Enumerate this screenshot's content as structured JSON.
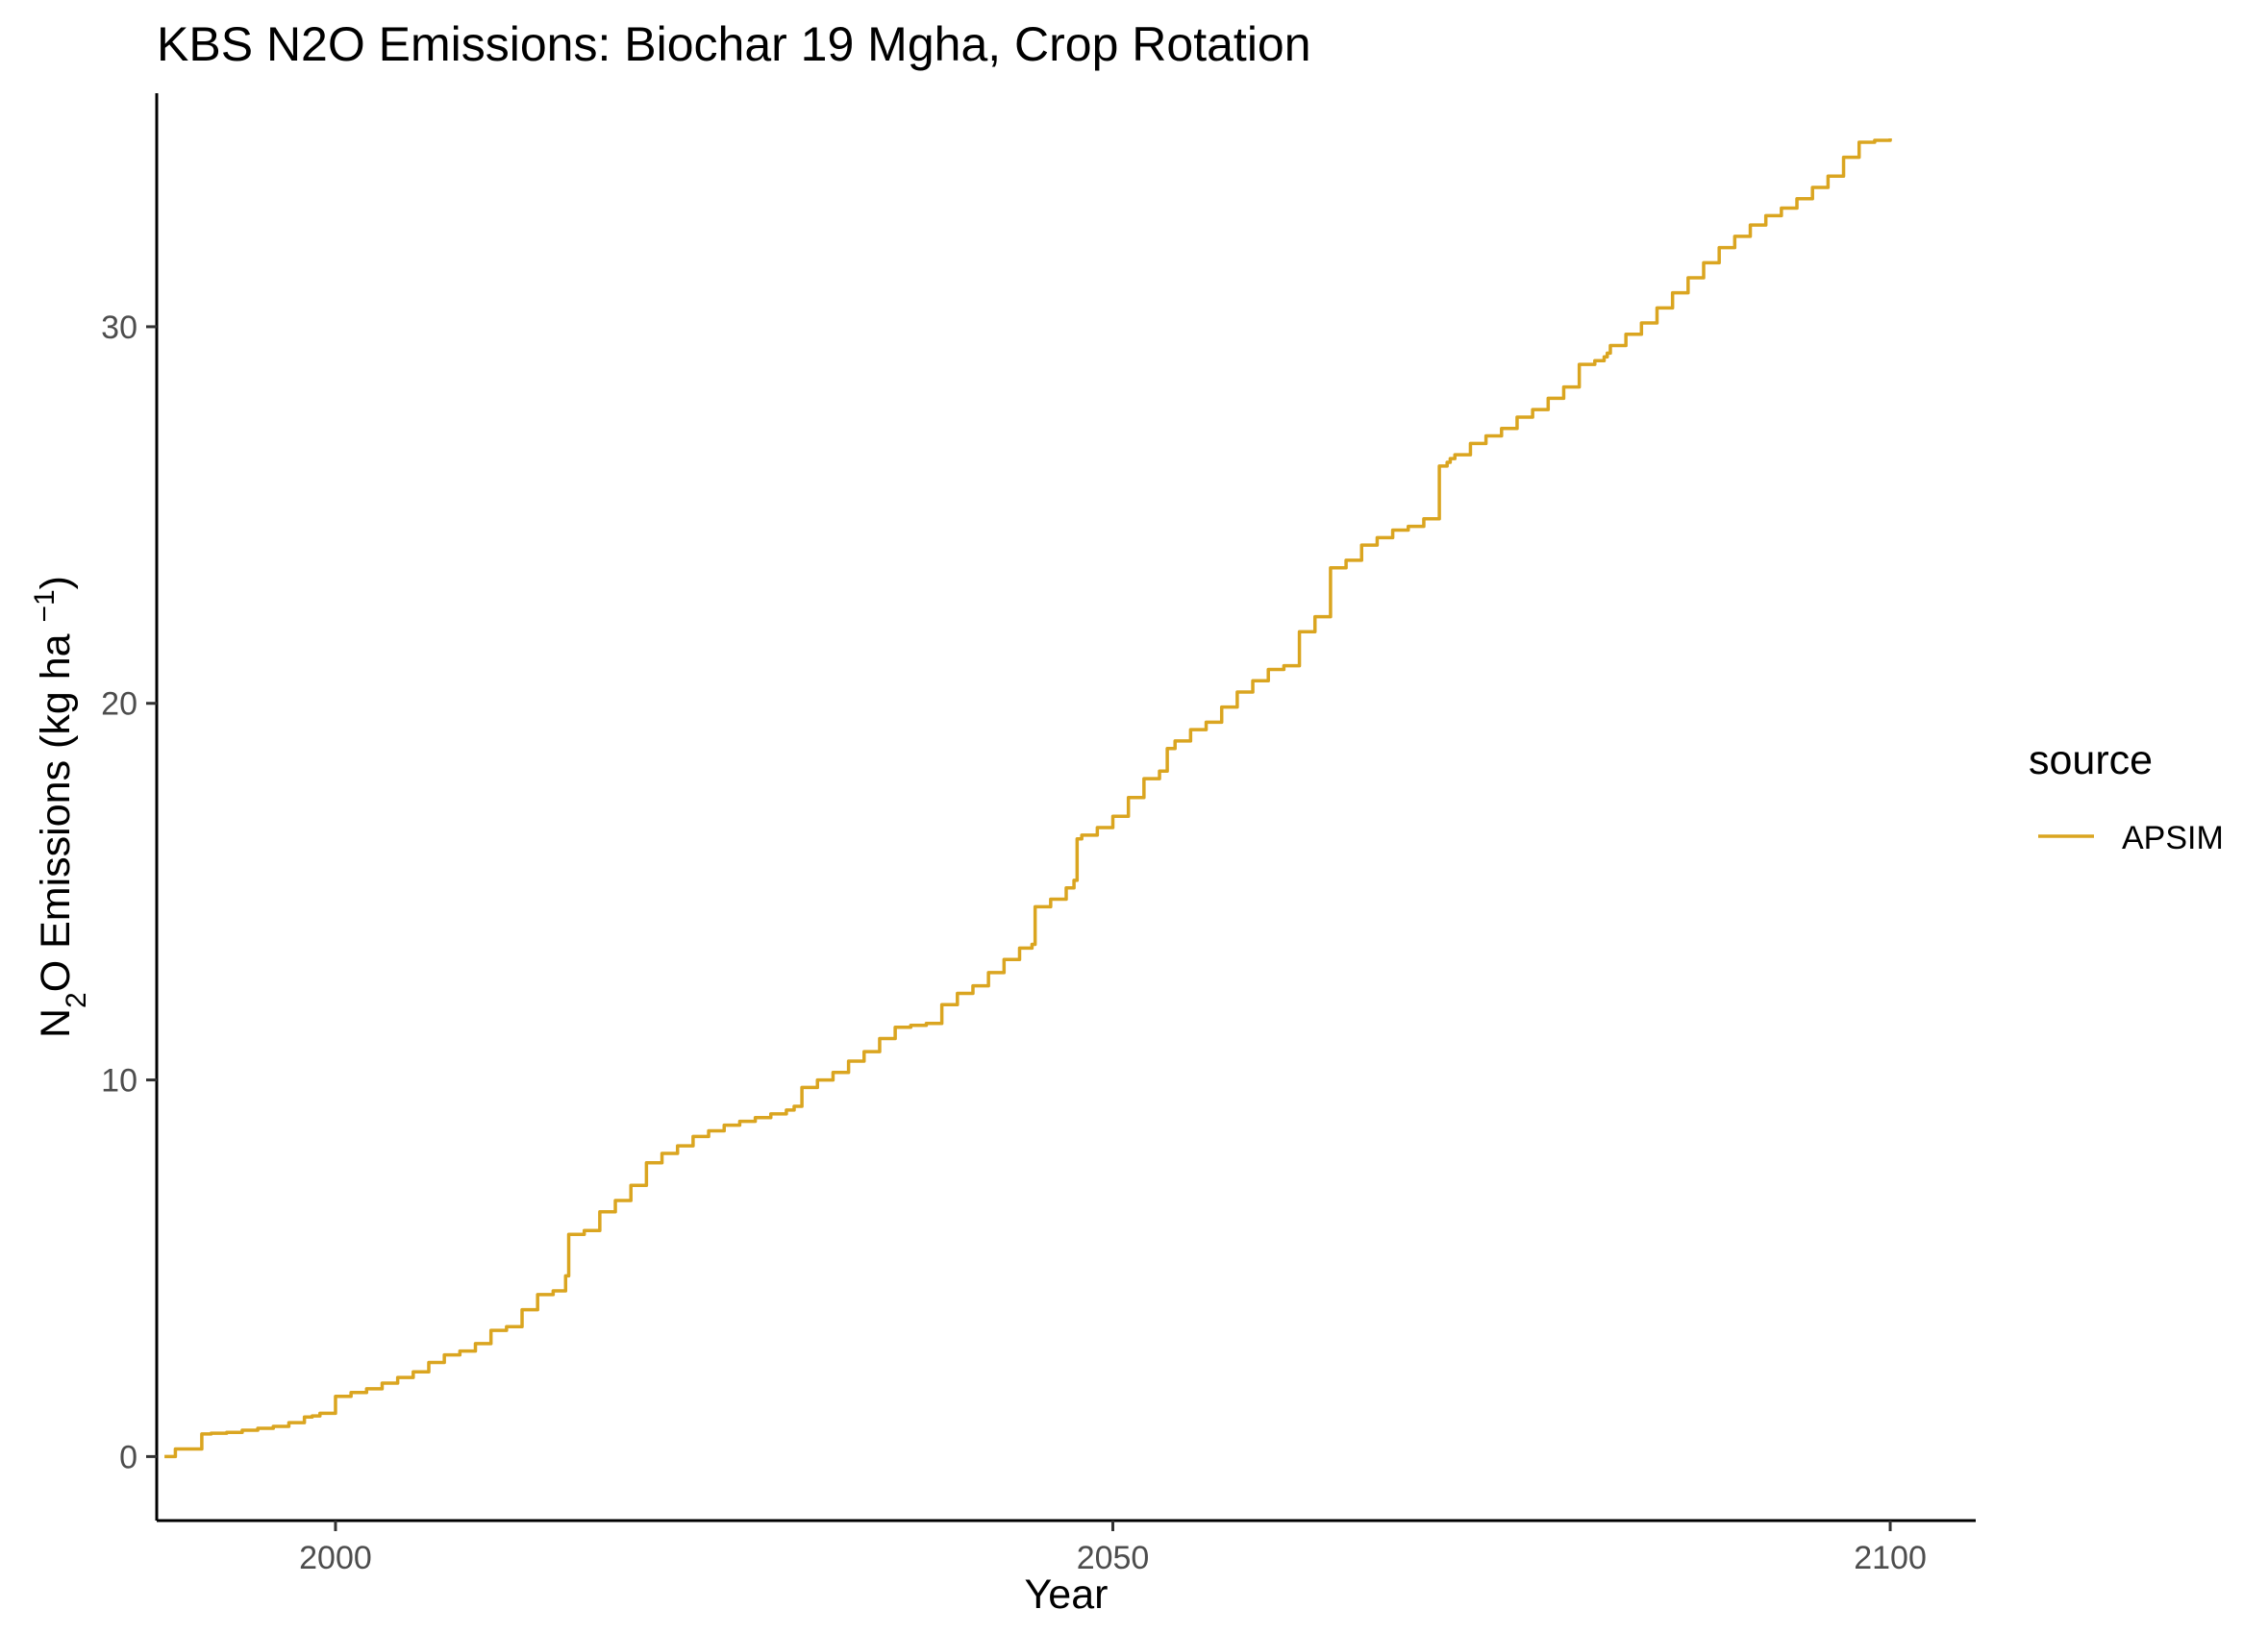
{
  "chart_data": {
    "type": "line",
    "title": "KBS N2O Emissions:  Biochar 19 Mgha, Crop Rotation",
    "xlabel": "Year",
    "ylabel": {
      "prefix": "N",
      "sub": "2",
      "mid": "O Emissions (kg ha ",
      "sup": "−1",
      "suffix": ")"
    },
    "xlim": [
      1988.5,
      2105.5
    ],
    "ylim": [
      -1.7,
      36.2
    ],
    "x_ticks": [
      2000,
      2050,
      2100
    ],
    "x_tick_labels": [
      "2000",
      "2050",
      "2100"
    ],
    "y_ticks": [
      0,
      10,
      20,
      30
    ],
    "y_tick_labels": [
      "0",
      "10",
      "20",
      "30"
    ],
    "grid": false,
    "legend": {
      "title": "source",
      "position": "right",
      "entries": [
        {
          "label": "APSIM",
          "color": "#DAA520"
        }
      ]
    },
    "series": [
      {
        "name": "APSIM",
        "color": "#DAA520",
        "x": [
          1989,
          1989.6,
          1989.7,
          1991.3,
          1991.4,
          1992,
          1993,
          1994,
          1995,
          1996,
          1997,
          1998,
          1998.5,
          1999,
          2000,
          2001,
          2002,
          2003,
          2004,
          2005,
          2006,
          2007,
          2008,
          2009,
          2010,
          2011,
          2012,
          2013,
          2014,
          2014.8,
          2015,
          2016,
          2017,
          2018,
          2019,
          2020,
          2021,
          2022,
          2023,
          2024,
          2025,
          2026,
          2027,
          2028,
          2029,
          2029.5,
          2030,
          2031,
          2032,
          2033,
          2034,
          2035,
          2036,
          2037,
          2038,
          2039,
          2040,
          2041,
          2042,
          2043,
          2044,
          2044.8,
          2045,
          2046,
          2047,
          2047.5,
          2047.7,
          2048,
          2049,
          2050,
          2051,
          2052,
          2053,
          2053.5,
          2054,
          2055,
          2056,
          2057,
          2058,
          2059,
          2060,
          2061,
          2062,
          2063,
          2064,
          2065,
          2066,
          2067,
          2068,
          2069,
          2070,
          2071,
          2071.5,
          2071.7,
          2072,
          2073,
          2074,
          2075,
          2076,
          2077,
          2078,
          2079,
          2080,
          2081,
          2081.6,
          2081.8,
          2082,
          2083,
          2084,
          2085,
          2086,
          2087,
          2088,
          2089,
          2090,
          2091,
          2092,
          2093,
          2094,
          2095,
          2096,
          2097,
          2098,
          2099,
          2100
        ],
        "y": [
          0.0,
          0.0,
          0.2,
          0.2,
          0.6,
          0.62,
          0.64,
          0.7,
          0.75,
          0.8,
          0.9,
          1.05,
          1.08,
          1.15,
          1.6,
          1.7,
          1.8,
          1.95,
          2.1,
          2.25,
          2.5,
          2.7,
          2.8,
          3.0,
          3.35,
          3.45,
          3.9,
          4.3,
          4.4,
          4.8,
          5.9,
          6.0,
          6.5,
          6.8,
          7.2,
          7.8,
          8.05,
          8.25,
          8.5,
          8.65,
          8.8,
          8.9,
          9.0,
          9.1,
          9.2,
          9.3,
          9.8,
          10.0,
          10.2,
          10.5,
          10.75,
          11.1,
          11.4,
          11.45,
          11.5,
          12.0,
          12.3,
          12.5,
          12.85,
          13.2,
          13.5,
          13.6,
          14.6,
          14.8,
          15.1,
          15.3,
          16.4,
          16.5,
          16.7,
          17.0,
          17.5,
          18.0,
          18.2,
          18.8,
          19.0,
          19.3,
          19.5,
          19.9,
          20.3,
          20.6,
          20.9,
          21.0,
          21.9,
          22.3,
          23.6,
          23.8,
          24.2,
          24.4,
          24.6,
          24.7,
          24.9,
          26.3,
          26.4,
          26.5,
          26.6,
          26.9,
          27.1,
          27.3,
          27.6,
          27.8,
          28.1,
          28.4,
          29.0,
          29.1,
          29.2,
          29.3,
          29.5,
          29.8,
          30.1,
          30.5,
          30.9,
          31.3,
          31.7,
          32.1,
          32.4,
          32.7,
          32.95,
          33.15,
          33.4,
          33.7,
          34.0,
          34.5,
          34.9,
          34.95,
          35.0
        ]
      }
    ]
  }
}
